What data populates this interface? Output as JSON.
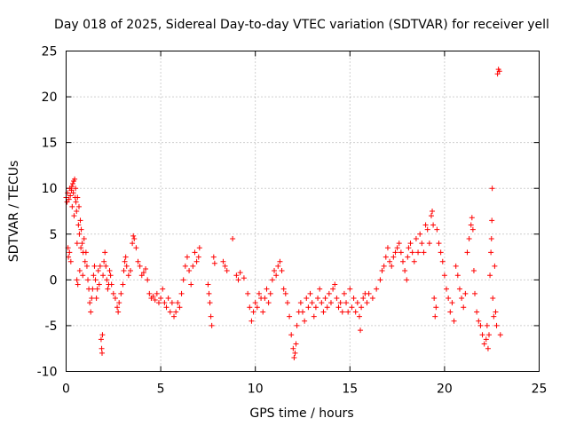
{
  "chart_data": {
    "type": "scatter",
    "title": "Day 018 of 2025, Sidereal Day-to-day VTEC variation (SDTVAR) for receiver yell",
    "xlabel": "GPS time / hours",
    "ylabel": "SDTVAR / TECUs",
    "xlim": [
      0,
      25
    ],
    "ylim": [
      -10,
      25
    ],
    "xticks": [
      0,
      5,
      10,
      15,
      20,
      25
    ],
    "yticks": [
      -10,
      -5,
      0,
      5,
      10,
      15,
      20,
      25
    ],
    "grid": true,
    "marker": "+",
    "color": "#ff0000",
    "series": [
      {
        "name": "SDTVAR",
        "points": [
          [
            0.0,
            9.0
          ],
          [
            0.05,
            8.5
          ],
          [
            0.08,
            9.5
          ],
          [
            0.1,
            3.5
          ],
          [
            0.12,
            2.5
          ],
          [
            0.15,
            8.8
          ],
          [
            0.18,
            3.0
          ],
          [
            0.2,
            10.0
          ],
          [
            0.22,
            9.2
          ],
          [
            0.25,
            2.0
          ],
          [
            0.28,
            9.8
          ],
          [
            0.3,
            10.2
          ],
          [
            0.32,
            8.0
          ],
          [
            0.35,
            10.5
          ],
          [
            0.38,
            9.5
          ],
          [
            0.4,
            10.8
          ],
          [
            0.42,
            7.0
          ],
          [
            0.45,
            11.0
          ],
          [
            0.48,
            9.0
          ],
          [
            0.5,
            10.0
          ],
          [
            0.52,
            8.5
          ],
          [
            0.55,
            7.5
          ],
          [
            0.57,
            0.0
          ],
          [
            0.58,
            4.0
          ],
          [
            0.6,
            9.0
          ],
          [
            0.62,
            -0.5
          ],
          [
            0.65,
            6.0
          ],
          [
            0.68,
            8.0
          ],
          [
            0.7,
            5.0
          ],
          [
            0.72,
            1.0
          ],
          [
            0.75,
            6.5
          ],
          [
            0.78,
            3.5
          ],
          [
            0.8,
            5.5
          ],
          [
            0.85,
            4.0
          ],
          [
            0.88,
            0.5
          ],
          [
            0.9,
            3.0
          ],
          [
            0.95,
            4.5
          ],
          [
            1.0,
            2.0
          ],
          [
            1.05,
            3.0
          ],
          [
            1.1,
            1.5
          ],
          [
            1.15,
            0.0
          ],
          [
            1.2,
            -1.0
          ],
          [
            1.25,
            -2.5
          ],
          [
            1.3,
            -3.5
          ],
          [
            1.35,
            -2.0
          ],
          [
            1.4,
            -1.0
          ],
          [
            1.45,
            0.5
          ],
          [
            1.5,
            1.5
          ],
          [
            1.55,
            0.0
          ],
          [
            1.6,
            -2.0
          ],
          [
            1.65,
            -1.0
          ],
          [
            1.7,
            1.0
          ],
          [
            1.75,
            -0.5
          ],
          [
            1.8,
            1.5
          ],
          [
            1.85,
            -6.5
          ],
          [
            1.88,
            -7.5
          ],
          [
            1.9,
            -8.0
          ],
          [
            1.92,
            -6.0
          ],
          [
            1.95,
            0.5
          ],
          [
            2.0,
            2.0
          ],
          [
            2.05,
            3.0
          ],
          [
            2.1,
            1.5
          ],
          [
            2.15,
            0.0
          ],
          [
            2.2,
            -1.0
          ],
          [
            2.25,
            -0.5
          ],
          [
            2.3,
            1.0
          ],
          [
            2.35,
            0.5
          ],
          [
            2.4,
            -0.5
          ],
          [
            2.5,
            -1.5
          ],
          [
            2.6,
            -2.0
          ],
          [
            2.7,
            -3.0
          ],
          [
            2.75,
            -3.5
          ],
          [
            2.8,
            -2.5
          ],
          [
            2.9,
            -1.5
          ],
          [
            3.0,
            -0.5
          ],
          [
            3.05,
            1.0
          ],
          [
            3.1,
            2.0
          ],
          [
            3.15,
            2.5
          ],
          [
            3.2,
            1.5
          ],
          [
            3.3,
            0.5
          ],
          [
            3.4,
            1.0
          ],
          [
            3.5,
            4.0
          ],
          [
            3.55,
            4.8
          ],
          [
            3.6,
            4.5
          ],
          [
            3.7,
            3.5
          ],
          [
            3.8,
            2.0
          ],
          [
            3.9,
            1.5
          ],
          [
            4.0,
            0.5
          ],
          [
            4.1,
            0.8
          ],
          [
            4.2,
            1.2
          ],
          [
            4.3,
            0.0
          ],
          [
            4.4,
            -1.5
          ],
          [
            4.5,
            -2.0
          ],
          [
            4.6,
            -1.8
          ],
          [
            4.7,
            -2.2
          ],
          [
            4.8,
            -1.5
          ],
          [
            4.9,
            -2.5
          ],
          [
            5.0,
            -2.0
          ],
          [
            5.1,
            -1.0
          ],
          [
            5.2,
            -2.5
          ],
          [
            5.3,
            -3.0
          ],
          [
            5.4,
            -2.0
          ],
          [
            5.5,
            -3.5
          ],
          [
            5.6,
            -2.5
          ],
          [
            5.7,
            -4.0
          ],
          [
            5.8,
            -3.5
          ],
          [
            5.9,
            -2.5
          ],
          [
            6.0,
            -3.0
          ],
          [
            6.1,
            -1.5
          ],
          [
            6.2,
            0.0
          ],
          [
            6.3,
            1.5
          ],
          [
            6.4,
            2.5
          ],
          [
            6.5,
            1.0
          ],
          [
            6.6,
            -0.5
          ],
          [
            6.7,
            1.5
          ],
          [
            6.8,
            3.0
          ],
          [
            6.9,
            2.0
          ],
          [
            7.0,
            2.5
          ],
          [
            7.05,
            3.5
          ],
          [
            7.5,
            -0.5
          ],
          [
            7.55,
            -1.5
          ],
          [
            7.6,
            -2.5
          ],
          [
            7.65,
            -4.0
          ],
          [
            7.7,
            -5.0
          ],
          [
            7.8,
            2.5
          ],
          [
            7.85,
            1.8
          ],
          [
            8.3,
            2.0
          ],
          [
            8.4,
            1.5
          ],
          [
            8.5,
            1.0
          ],
          [
            8.8,
            4.5
          ],
          [
            9.0,
            0.5
          ],
          [
            9.1,
            0.0
          ],
          [
            9.2,
            0.8
          ],
          [
            9.4,
            0.2
          ],
          [
            9.6,
            -1.5
          ],
          [
            9.7,
            -3.0
          ],
          [
            9.8,
            -4.5
          ],
          [
            9.9,
            -3.5
          ],
          [
            10.0,
            -2.5
          ],
          [
            10.1,
            -3.0
          ],
          [
            10.2,
            -1.5
          ],
          [
            10.3,
            -2.0
          ],
          [
            10.4,
            -3.5
          ],
          [
            10.5,
            -2.0
          ],
          [
            10.6,
            -1.0
          ],
          [
            10.7,
            -2.5
          ],
          [
            10.8,
            -1.5
          ],
          [
            10.9,
            0.0
          ],
          [
            11.0,
            1.0
          ],
          [
            11.1,
            0.5
          ],
          [
            11.2,
            1.5
          ],
          [
            11.3,
            2.0
          ],
          [
            11.4,
            1.0
          ],
          [
            11.5,
            -1.0
          ],
          [
            11.6,
            -1.5
          ],
          [
            11.7,
            -2.5
          ],
          [
            11.8,
            -4.0
          ],
          [
            11.9,
            -6.0
          ],
          [
            12.0,
            -7.5
          ],
          [
            12.05,
            -8.5
          ],
          [
            12.1,
            -8.0
          ],
          [
            12.15,
            -7.0
          ],
          [
            12.2,
            -5.0
          ],
          [
            12.3,
            -3.5
          ],
          [
            12.4,
            -2.5
          ],
          [
            12.5,
            -3.5
          ],
          [
            12.6,
            -4.5
          ],
          [
            12.7,
            -2.0
          ],
          [
            12.8,
            -3.0
          ],
          [
            12.9,
            -1.5
          ],
          [
            13.0,
            -2.5
          ],
          [
            13.1,
            -4.0
          ],
          [
            13.2,
            -3.0
          ],
          [
            13.3,
            -2.0
          ],
          [
            13.4,
            -1.0
          ],
          [
            13.5,
            -2.5
          ],
          [
            13.6,
            -3.5
          ],
          [
            13.7,
            -2.0
          ],
          [
            13.8,
            -3.0
          ],
          [
            13.9,
            -1.5
          ],
          [
            14.0,
            -2.5
          ],
          [
            14.1,
            -1.0
          ],
          [
            14.2,
            -0.5
          ],
          [
            14.3,
            -2.0
          ],
          [
            14.4,
            -3.0
          ],
          [
            14.5,
            -2.5
          ],
          [
            14.6,
            -3.5
          ],
          [
            14.7,
            -1.5
          ],
          [
            14.8,
            -2.5
          ],
          [
            14.9,
            -3.5
          ],
          [
            15.0,
            -1.0
          ],
          [
            15.1,
            -3.0
          ],
          [
            15.2,
            -2.0
          ],
          [
            15.3,
            -3.5
          ],
          [
            15.4,
            -2.5
          ],
          [
            15.5,
            -4.0
          ],
          [
            15.55,
            -5.5
          ],
          [
            15.6,
            -3.0
          ],
          [
            15.7,
            -2.0
          ],
          [
            15.8,
            -1.5
          ],
          [
            15.9,
            -2.5
          ],
          [
            16.0,
            -1.5
          ],
          [
            16.2,
            -2.0
          ],
          [
            16.4,
            -1.0
          ],
          [
            16.6,
            0.0
          ],
          [
            16.7,
            1.0
          ],
          [
            16.8,
            1.5
          ],
          [
            16.9,
            2.5
          ],
          [
            17.0,
            3.5
          ],
          [
            17.1,
            2.0
          ],
          [
            17.2,
            1.5
          ],
          [
            17.3,
            2.5
          ],
          [
            17.4,
            3.0
          ],
          [
            17.5,
            3.5
          ],
          [
            17.6,
            4.0
          ],
          [
            17.7,
            3.0
          ],
          [
            17.8,
            2.0
          ],
          [
            17.9,
            1.0
          ],
          [
            18.0,
            0.0
          ],
          [
            18.05,
            2.5
          ],
          [
            18.1,
            3.5
          ],
          [
            18.2,
            4.0
          ],
          [
            18.3,
            3.0
          ],
          [
            18.4,
            2.0
          ],
          [
            18.5,
            4.5
          ],
          [
            18.6,
            3.0
          ],
          [
            18.7,
            5.0
          ],
          [
            18.8,
            4.0
          ],
          [
            18.9,
            3.0
          ],
          [
            19.0,
            6.0
          ],
          [
            19.1,
            5.5
          ],
          [
            19.2,
            4.0
          ],
          [
            19.3,
            7.0
          ],
          [
            19.35,
            7.5
          ],
          [
            19.4,
            6.0
          ],
          [
            19.45,
            -2.0
          ],
          [
            19.5,
            -4.0
          ],
          [
            19.55,
            -3.0
          ],
          [
            19.6,
            5.5
          ],
          [
            19.7,
            4.0
          ],
          [
            19.8,
            3.0
          ],
          [
            19.9,
            2.0
          ],
          [
            20.0,
            0.5
          ],
          [
            20.1,
            -1.0
          ],
          [
            20.2,
            -2.0
          ],
          [
            20.3,
            -3.5
          ],
          [
            20.4,
            -2.5
          ],
          [
            20.5,
            -4.5
          ],
          [
            20.6,
            1.5
          ],
          [
            20.7,
            0.5
          ],
          [
            20.8,
            -1.0
          ],
          [
            20.9,
            -2.0
          ],
          [
            21.0,
            -3.0
          ],
          [
            21.1,
            -1.5
          ],
          [
            21.2,
            3.0
          ],
          [
            21.3,
            4.5
          ],
          [
            21.4,
            6.0
          ],
          [
            21.45,
            6.8
          ],
          [
            21.5,
            5.5
          ],
          [
            21.55,
            1.0
          ],
          [
            21.6,
            -1.5
          ],
          [
            21.7,
            -3.5
          ],
          [
            21.8,
            -4.5
          ],
          [
            21.9,
            -5.0
          ],
          [
            22.0,
            -6.0
          ],
          [
            22.1,
            -7.0
          ],
          [
            22.2,
            -6.5
          ],
          [
            22.25,
            -5.0
          ],
          [
            22.3,
            -7.5
          ],
          [
            22.35,
            -6.0
          ],
          [
            22.4,
            0.5
          ],
          [
            22.45,
            3.0
          ],
          [
            22.48,
            4.5
          ],
          [
            22.5,
            6.5
          ],
          [
            22.52,
            10.0
          ],
          [
            22.55,
            -2.0
          ],
          [
            22.6,
            -4.0
          ],
          [
            22.65,
            1.5
          ],
          [
            22.7,
            -3.5
          ],
          [
            22.75,
            -5.0
          ],
          [
            22.8,
            22.5
          ],
          [
            22.85,
            23.0
          ],
          [
            22.9,
            22.8
          ],
          [
            22.95,
            -6.0
          ]
        ]
      }
    ]
  }
}
